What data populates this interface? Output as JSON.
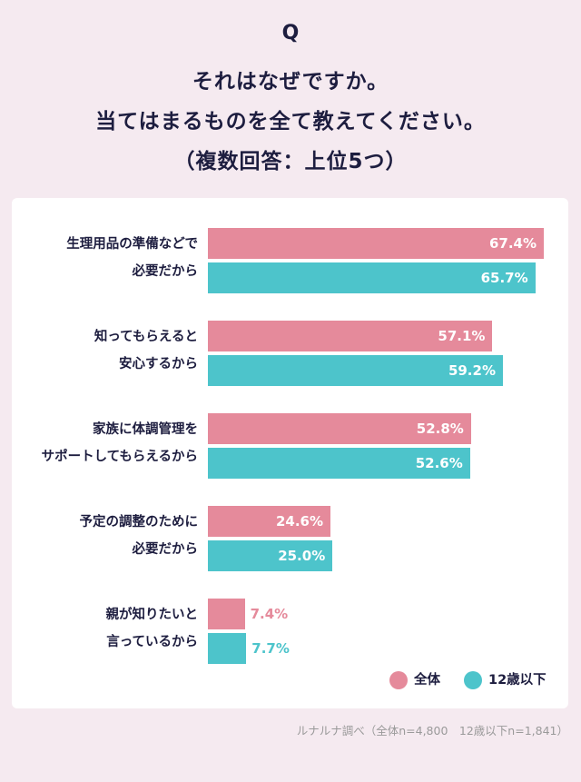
{
  "header": {
    "q_mark": "Q",
    "title_lines": [
      "それはなぜですか。",
      "当てはまるものを全て教えてください。",
      "（複数回答：上位5つ）"
    ]
  },
  "legend": [
    {
      "label": "全体",
      "color": "#e58a9b"
    },
    {
      "label": "12歳以下",
      "color": "#4dc4cb"
    }
  ],
  "footnote": "ルナルナ調べ（全体n=4,800　12歳以下n=1,841）",
  "chart_data": {
    "type": "bar",
    "orientation": "horizontal",
    "unit": "%",
    "xlim": [
      0,
      70
    ],
    "categories": [
      [
        "生理用品の準備などで",
        "必要だから"
      ],
      [
        "知ってもらえると",
        "安心するから"
      ],
      [
        "家族に体調管理を",
        "サポートしてもらえるから"
      ],
      [
        "予定の調整のために",
        "必要だから"
      ],
      [
        "親が知りたいと",
        "言っているから"
      ]
    ],
    "series": [
      {
        "name": "全体",
        "color": "#e58a9b",
        "values": [
          67.4,
          57.1,
          52.8,
          24.6,
          7.4
        ],
        "labels": [
          "67.4%",
          "57.1%",
          "52.8%",
          "24.6%",
          "7.4%"
        ]
      },
      {
        "name": "12歳以下",
        "color": "#4dc4cb",
        "values": [
          65.7,
          59.2,
          52.6,
          25.0,
          7.7
        ],
        "labels": [
          "65.7%",
          "59.2%",
          "52.6%",
          "25.0%",
          "7.7%"
        ]
      }
    ]
  }
}
